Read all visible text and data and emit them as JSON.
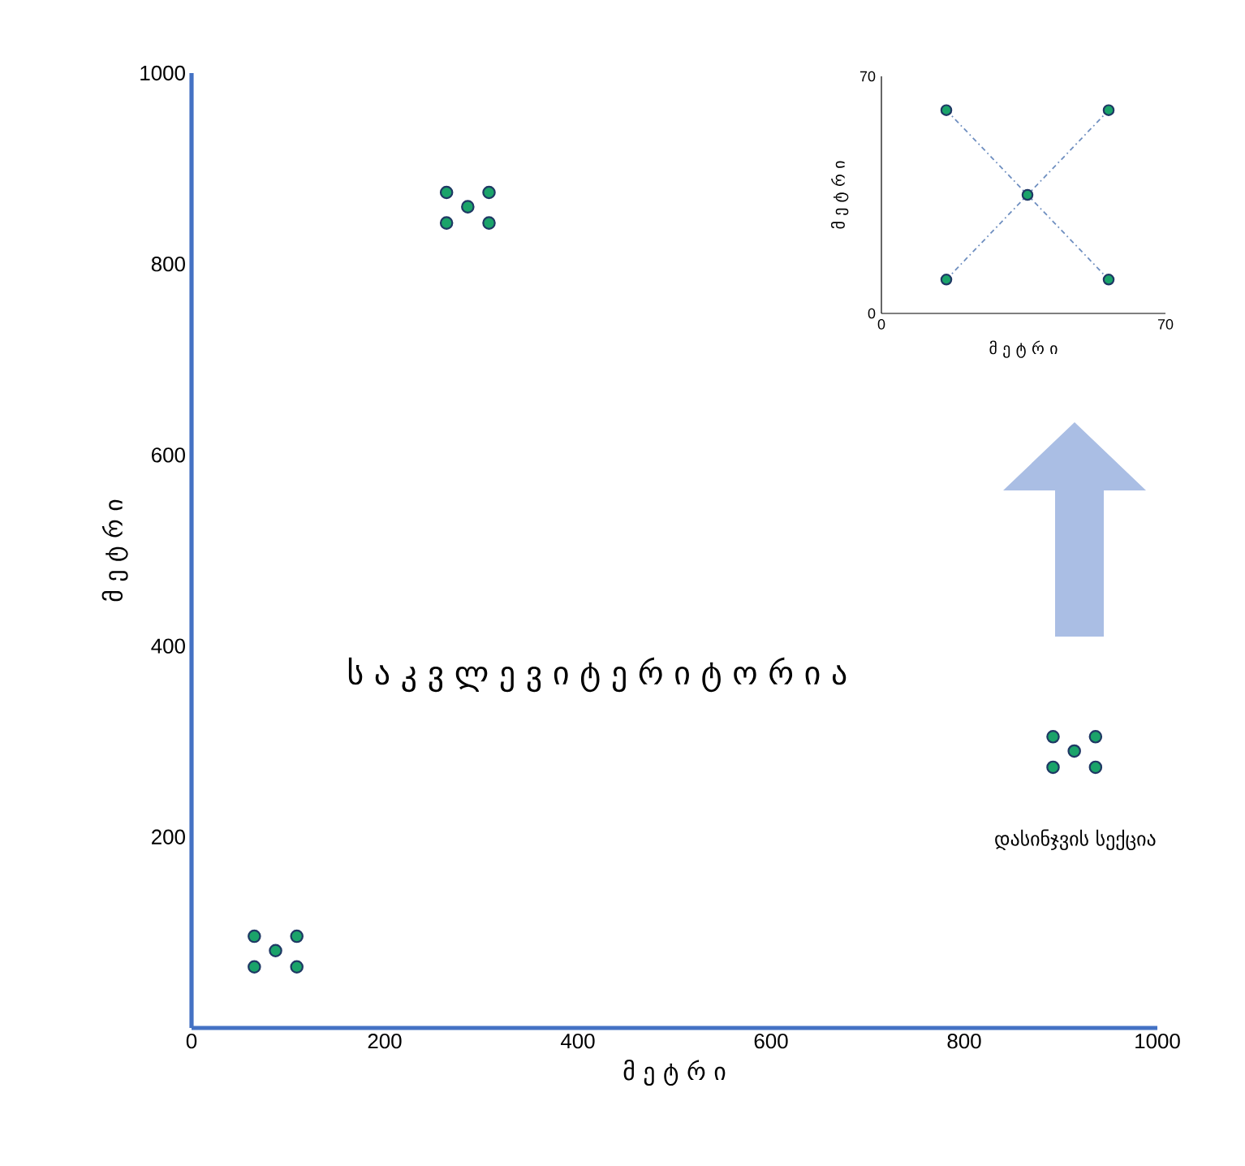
{
  "chart_data": [
    {
      "type": "scatter",
      "xlabel": "მ ე ტ რ ი",
      "ylabel": "მ ე ტ რ ი",
      "xlim": [
        0,
        1000
      ],
      "ylim": [
        0,
        1000
      ],
      "xticks": [
        0,
        200,
        400,
        600,
        800,
        1000
      ],
      "yticks": [
        200,
        400,
        600,
        800,
        1000
      ],
      "marker": "circle",
      "series": [
        {
          "color": "#1aa36a",
          "x": [
            65,
            109,
            87,
            65,
            109,
            264,
            308,
            286,
            264,
            308,
            892,
            936,
            914,
            892,
            936
          ],
          "values": [
            96,
            96,
            81,
            64,
            64,
            875,
            875,
            860,
            843,
            843,
            305,
            305,
            290,
            273,
            273
          ]
        }
      ],
      "annotations": [
        "ს ა კ ვ ლ ე ვ ი   ტ ე რ ი ტ ო რ ი ა",
        "დასინჯვის სექცია"
      ]
    },
    {
      "type": "scatter",
      "xlabel": "მ ე ტ რ ი",
      "ylabel": "მ ე ტ რ ი",
      "xlim": [
        0,
        70
      ],
      "ylim": [
        0,
        70
      ],
      "xticks": [
        0,
        70
      ],
      "yticks": [
        0,
        70
      ],
      "marker": "circle",
      "series": [
        {
          "type": "line",
          "marker": "none",
          "line_style": "dashed",
          "color": "#6f8fc0",
          "x": [
            16,
            36,
            56
          ],
          "values": [
            60,
            35,
            10
          ]
        },
        {
          "type": "line",
          "marker": "none",
          "line_style": "dashed",
          "color": "#6f8fc0",
          "x": [
            16,
            36,
            56
          ],
          "values": [
            10,
            35,
            60
          ]
        },
        {
          "type": "scatter",
          "color": "#1aa36a",
          "x": [
            16,
            56,
            36,
            16,
            56
          ],
          "values": [
            60,
            60,
            35,
            10,
            10
          ]
        }
      ]
    }
  ]
}
